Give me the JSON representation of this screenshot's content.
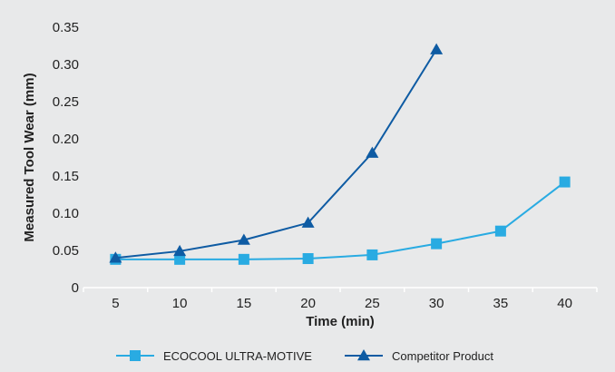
{
  "chart_data": {
    "type": "line",
    "title": "",
    "xlabel": "Time (min)",
    "ylabel": "Measured Tool Wear (mm)",
    "categories": [
      "5",
      "10",
      "15",
      "20",
      "25",
      "30",
      "35",
      "40"
    ],
    "ylim": [
      0,
      0.35
    ],
    "yticks": [
      "0",
      "0.05",
      "0.10",
      "0.15",
      "0.20",
      "0.25",
      "0.30",
      "0.35"
    ],
    "grid": false,
    "legend_position": "bottom",
    "series": [
      {
        "name": "ECOCOOL ULTRA-MOTIVE",
        "color": "#29abe2",
        "marker": "square",
        "values": [
          0.038,
          0.038,
          0.038,
          0.039,
          0.044,
          0.059,
          0.076,
          0.142
        ]
      },
      {
        "name": "Competitor Product",
        "color": "#0e5ba3",
        "marker": "triangle",
        "values": [
          0.04,
          0.049,
          0.064,
          0.087,
          0.181,
          0.32,
          null,
          null
        ]
      }
    ]
  }
}
